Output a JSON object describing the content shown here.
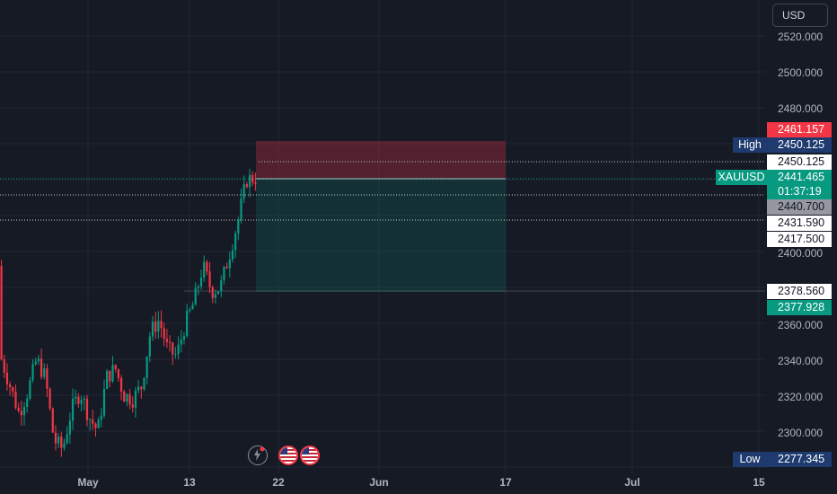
{
  "currency_button": "USD",
  "price_axis": {
    "ticks": [
      "2520.000",
      "2500.000",
      "2480.000",
      "2400.000",
      "2360.000",
      "2340.000",
      "2320.000",
      "2300.000"
    ]
  },
  "time_axis": {
    "ticks": [
      "May",
      "13",
      "22",
      "Jun",
      "17",
      "Jul",
      "15"
    ]
  },
  "labels": {
    "stop_loss": "2461.157",
    "high_tag": "High",
    "high_value": "2450.125",
    "dotted_high": "2450.125",
    "symbol": "XAUUSD",
    "last_price": "2441.465",
    "countdown": "01:37:19",
    "entry": "2440.700",
    "level_1": "2431.590",
    "level_2": "2417.500",
    "level_3": "2378.560",
    "take_profit": "2377.928",
    "low_tag": "Low",
    "low_value": "2277.345"
  },
  "colors": {
    "background": "#161a25",
    "up": "#089981",
    "down": "#f23645",
    "stop_zone": "#f23645",
    "target_zone": "#089981",
    "high_low_tag": "#1e3a6e"
  },
  "icons": [
    "flash-event-icon",
    "us-flag-icon",
    "us-flag-icon"
  ],
  "chart_data": {
    "type": "candlestick",
    "symbol": "XAUUSD",
    "currency": "USD",
    "ylim": [
      2270,
      2530
    ],
    "x_ticks": [
      "May",
      "13",
      "22",
      "Jun",
      "17",
      "Jul",
      "15"
    ],
    "last_price": 2441.465,
    "high": 2450.125,
    "low": 2277.345,
    "position": {
      "entry": 2440.7,
      "stop": 2461.157,
      "target": 2377.928
    },
    "horizontal_levels": [
      2450.125,
      2431.59,
      2417.5,
      2378.56
    ],
    "candles_ohlc_sample": [
      [
        2392,
        2398,
        2330,
        2340
      ],
      [
        2340,
        2350,
        2318,
        2325
      ],
      [
        2325,
        2335,
        2300,
        2310
      ],
      [
        2310,
        2330,
        2295,
        2322
      ],
      [
        2322,
        2345,
        2315,
        2340
      ],
      [
        2340,
        2352,
        2325,
        2330
      ],
      [
        2330,
        2340,
        2285,
        2295
      ],
      [
        2295,
        2305,
        2280,
        2290
      ],
      [
        2290,
        2318,
        2285,
        2312
      ],
      [
        2312,
        2330,
        2305,
        2322
      ],
      [
        2322,
        2335,
        2300,
        2308
      ],
      [
        2308,
        2320,
        2290,
        2300
      ],
      [
        2300,
        2335,
        2298,
        2330
      ],
      [
        2330,
        2342,
        2320,
        2335
      ],
      [
        2335,
        2338,
        2315,
        2320
      ],
      [
        2320,
        2330,
        2310,
        2318
      ],
      [
        2318,
        2328,
        2312,
        2325
      ],
      [
        2325,
        2360,
        2322,
        2355
      ],
      [
        2355,
        2375,
        2340,
        2362
      ],
      [
        2362,
        2368,
        2340,
        2345
      ],
      [
        2345,
        2350,
        2332,
        2342
      ],
      [
        2342,
        2365,
        2338,
        2360
      ],
      [
        2360,
        2378,
        2355,
        2372
      ],
      [
        2372,
        2398,
        2368,
        2392
      ],
      [
        2392,
        2396,
        2375,
        2378
      ],
      [
        2378,
        2382,
        2372,
        2380
      ],
      [
        2380,
        2400,
        2378,
        2398
      ],
      [
        2398,
        2420,
        2396,
        2417
      ],
      [
        2417,
        2442,
        2415,
        2440
      ],
      [
        2440,
        2450,
        2436,
        2441
      ]
    ]
  }
}
